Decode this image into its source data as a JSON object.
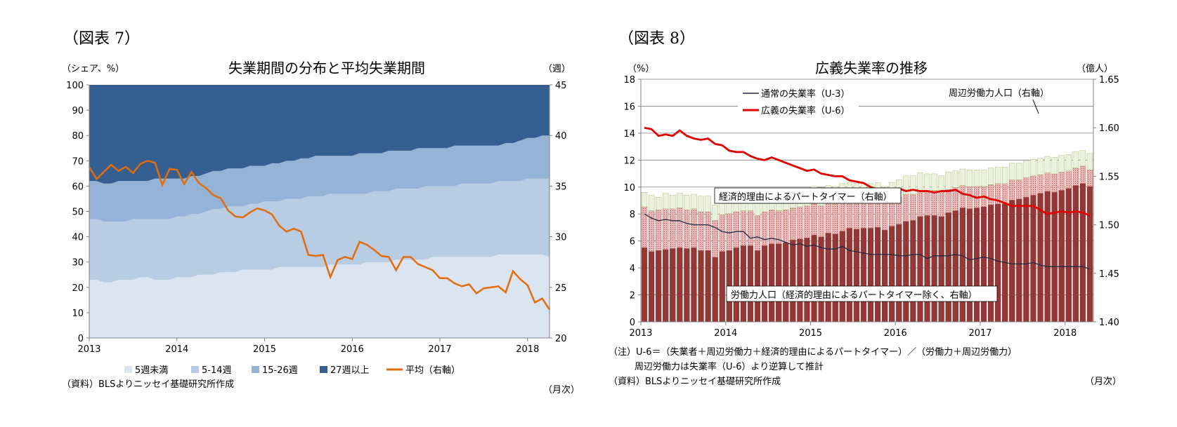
{
  "figures": [
    {
      "id": "fig7",
      "label": "（図表 7）",
      "source": "（資料）BLSよりニッセイ基礎研究所作成",
      "xunit": "（月次）"
    },
    {
      "id": "fig8",
      "label": "（図表 8）",
      "note1": "（注）U-6＝（失業者＋周辺労働力＋経済的理由によるパートタイマー）／（労働力＋周辺労働力）",
      "note2": "周辺労働力は失業率（U-6）より逆算して推計",
      "source": "（資料）BLSよりニッセイ基礎研究所作成",
      "xunit": "（月次）"
    }
  ],
  "chart_data": [
    {
      "type": "area",
      "title": "失業期間の分布と平均失業期間",
      "ylabel_left": "（シェア、%）",
      "ylabel_right": "（週）",
      "ylim": [
        0,
        100
      ],
      "ylim_right": [
        20,
        45
      ],
      "yticks_left": [
        0,
        10,
        20,
        30,
        40,
        50,
        60,
        70,
        80,
        90,
        100
      ],
      "yticks_right": [
        20,
        25,
        30,
        35,
        40,
        45
      ],
      "x_start": "2013-01",
      "x_end": "2018-04",
      "xticks": [
        "2013",
        "2014",
        "2015",
        "2016",
        "2017",
        "2018"
      ],
      "legend_position": "bottom",
      "series": [
        {
          "name": "5週未満",
          "kind": "area",
          "color": "#dbe5f1",
          "values": [
            23,
            23,
            22,
            22,
            23,
            23,
            23,
            24,
            24,
            23,
            23,
            23,
            24,
            24,
            24,
            25,
            25,
            25,
            26,
            26,
            26,
            27,
            27,
            27,
            27,
            27,
            28,
            28,
            28,
            28,
            28,
            28,
            28,
            29,
            29,
            29,
            29,
            29,
            30,
            30,
            30,
            30,
            31,
            31,
            31,
            31,
            31,
            32,
            32,
            32,
            32,
            32,
            32,
            32,
            32,
            32,
            33,
            33,
            33,
            33,
            33,
            33,
            33,
            32
          ]
        },
        {
          "name": "5-14週",
          "kind": "area",
          "color": "#b8cce4",
          "values": [
            47,
            47,
            46,
            46,
            46,
            46,
            47,
            47,
            47,
            47,
            47,
            47,
            48,
            48,
            49,
            49,
            50,
            51,
            51,
            52,
            52,
            52,
            53,
            53,
            54,
            54,
            54,
            55,
            55,
            55,
            56,
            56,
            56,
            57,
            57,
            57,
            57,
            57,
            57,
            58,
            58,
            58,
            59,
            59,
            59,
            59,
            60,
            60,
            60,
            60,
            60,
            61,
            61,
            61,
            61,
            61,
            62,
            62,
            62,
            62,
            63,
            63,
            63,
            63
          ]
        },
        {
          "name": "15-26週",
          "kind": "area",
          "color": "#95b3d7",
          "values": [
            62,
            62,
            61,
            61,
            62,
            62,
            62,
            62,
            62,
            63,
            63,
            63,
            63,
            63,
            64,
            64,
            65,
            66,
            66,
            67,
            67,
            67,
            68,
            68,
            68,
            69,
            69,
            70,
            70,
            71,
            71,
            72,
            72,
            72,
            72,
            72,
            72,
            73,
            73,
            73,
            73,
            74,
            74,
            74,
            74,
            75,
            75,
            75,
            75,
            75,
            76,
            76,
            76,
            76,
            76,
            76,
            76,
            77,
            77,
            78,
            79,
            79,
            80,
            80
          ]
        },
        {
          "name": "27週以上",
          "kind": "area",
          "color": "#365f91",
          "values": [
            100,
            100,
            100,
            100,
            100,
            100,
            100,
            100,
            100,
            100,
            100,
            100,
            100,
            100,
            100,
            100,
            100,
            100,
            100,
            100,
            100,
            100,
            100,
            100,
            100,
            100,
            100,
            100,
            100,
            100,
            100,
            100,
            100,
            100,
            100,
            100,
            100,
            100,
            100,
            100,
            100,
            100,
            100,
            100,
            100,
            100,
            100,
            100,
            100,
            100,
            100,
            100,
            100,
            100,
            100,
            100,
            100,
            100,
            100,
            100,
            100,
            100,
            100,
            100
          ]
        },
        {
          "name": "平均（右軸）",
          "kind": "line",
          "axis": "right",
          "color": "#e46c0a",
          "values": [
            36.9,
            35.7,
            36.4,
            37.1,
            36.5,
            36.9,
            36.3,
            37.2,
            37.5,
            37.3,
            35.1,
            36.7,
            36.6,
            35.2,
            36.4,
            35.3,
            34.8,
            34.1,
            33.8,
            32.6,
            32.0,
            31.9,
            32.4,
            32.8,
            32.6,
            32.2,
            31.1,
            30.5,
            30.8,
            30.5,
            28.2,
            28.1,
            28.2,
            26.0,
            27.7,
            28.0,
            27.8,
            29.5,
            29.2,
            28.7,
            28.1,
            28.0,
            26.7,
            28.0,
            28.0,
            27.3,
            27.0,
            26.7,
            25.9,
            25.9,
            25.4,
            25.1,
            25.3,
            24.4,
            24.9,
            25.0,
            25.1,
            24.5,
            26.6,
            25.8,
            25.2,
            23.5,
            23.9,
            22.8
          ]
        }
      ]
    },
    {
      "type": "bar",
      "title": "広義失業率の推移",
      "ylabel_left": "（%）",
      "ylabel_right": "（億人）",
      "ylim": [
        0,
        18
      ],
      "ylim_right": [
        1.4,
        1.65
      ],
      "yticks_left": [
        0,
        2,
        4,
        6,
        8,
        10,
        12,
        14,
        16,
        18
      ],
      "yticks_right": [
        1.4,
        1.45,
        1.5,
        1.55,
        1.6,
        1.65
      ],
      "x_start": "2013-01",
      "x_end": "2018-04",
      "xticks": [
        "2013",
        "2014",
        "2015",
        "2016",
        "2017",
        "2018"
      ],
      "legend_position": "top-left",
      "annotations": [
        {
          "text": "周辺労働力人口（右軸）"
        },
        {
          "text": "経済的理由によるパートタイマー（右軸）"
        },
        {
          "text": "労働力人口（経済的理由によるパートタイマー除く、右軸）"
        }
      ],
      "series": [
        {
          "name": "労働力人口（経済的理由によるパートタイマー除く、右軸）",
          "kind": "stacked-bar",
          "axis": "right",
          "color": "#953735",
          "values": [
            1.4765,
            1.4725,
            1.4735,
            1.4745,
            1.4755,
            1.4765,
            1.4755,
            1.4765,
            1.4735,
            1.4735,
            1.4665,
            1.4725,
            1.4735,
            1.4765,
            1.4785,
            1.4785,
            1.4735,
            1.4785,
            1.4805,
            1.4805,
            1.4815,
            1.4845,
            1.4855,
            1.4865,
            1.4895,
            1.4875,
            1.4915,
            1.4905,
            1.4935,
            1.4965,
            1.4955,
            1.4965,
            1.4965,
            1.4975,
            1.4945,
            1.4985,
            1.5005,
            1.5035,
            1.5045,
            1.5085,
            1.5095,
            1.5095,
            1.5085,
            1.5125,
            1.5145,
            1.5175,
            1.5165,
            1.5175,
            1.5185,
            1.5205,
            1.5215,
            1.5215,
            1.5255,
            1.5265,
            1.5285,
            1.5305,
            1.5325,
            1.5345,
            1.5335,
            1.5355,
            1.5375,
            1.5405,
            1.5425,
            1.5395
          ]
        },
        {
          "name": "経済的理由によるパートタイマー（右軸）",
          "kind": "stacked-bar",
          "axis": "right",
          "color": "#e6b9b8",
          "values": [
            1.5185,
            1.5145,
            1.5155,
            1.5165,
            1.5165,
            1.5175,
            1.5155,
            1.5165,
            1.5135,
            1.5135,
            1.5045,
            1.5105,
            1.5115,
            1.5135,
            1.5145,
            1.5145,
            1.5095,
            1.5135,
            1.5155,
            1.5145,
            1.5155,
            1.5175,
            1.5185,
            1.5195,
            1.5215,
            1.5195,
            1.5235,
            1.5215,
            1.5245,
            1.5265,
            1.5255,
            1.5255,
            1.5255,
            1.5255,
            1.5225,
            1.5255,
            1.5285,
            1.5315,
            1.5315,
            1.5345,
            1.5355,
            1.5355,
            1.5335,
            1.5365,
            1.5385,
            1.5405,
            1.5395,
            1.5395,
            1.5395,
            1.5415,
            1.5425,
            1.5425,
            1.5465,
            1.5465,
            1.5485,
            1.5505,
            1.5515,
            1.5535,
            1.5525,
            1.5545,
            1.5555,
            1.5585,
            1.5605,
            1.5565
          ]
        },
        {
          "name": "周辺労働力人口（右軸）",
          "kind": "stacked-bar",
          "axis": "right",
          "color": "#ebf1de",
          "values": [
            1.5335,
            1.5305,
            1.5285,
            1.5325,
            1.5305,
            1.5325,
            1.5305,
            1.5315,
            1.5295,
            1.5295,
            1.5205,
            1.5285,
            1.5275,
            1.5285,
            1.5315,
            1.5305,
            1.5255,
            1.5305,
            1.5315,
            1.5315,
            1.5325,
            1.5345,
            1.5355,
            1.5365,
            1.5395,
            1.5385,
            1.5405,
            1.5395,
            1.5425,
            1.5435,
            1.5425,
            1.5425,
            1.5425,
            1.5435,
            1.5395,
            1.5435,
            1.5465,
            1.5505,
            1.5505,
            1.5535,
            1.5525,
            1.5525,
            1.5505,
            1.5545,
            1.5555,
            1.5575,
            1.5565,
            1.5565,
            1.5565,
            1.5585,
            1.5595,
            1.5595,
            1.5635,
            1.5635,
            1.5655,
            1.5675,
            1.5685,
            1.5705,
            1.5695,
            1.5715,
            1.5725,
            1.5755,
            1.5765,
            1.5735
          ]
        },
        {
          "name": "通常の失業率（U-3）",
          "kind": "line",
          "axis": "left",
          "color": "#1f2a44",
          "values": [
            8.0,
            7.7,
            7.5,
            7.6,
            7.5,
            7.5,
            7.3,
            7.2,
            7.2,
            7.2,
            7.0,
            6.7,
            6.6,
            6.7,
            6.7,
            6.2,
            6.3,
            6.1,
            6.2,
            6.1,
            5.9,
            5.7,
            5.8,
            5.6,
            5.7,
            5.5,
            5.4,
            5.4,
            5.6,
            5.3,
            5.2,
            5.1,
            5.0,
            5.0,
            5.0,
            5.0,
            4.9,
            4.9,
            5.0,
            5.0,
            4.7,
            4.9,
            4.9,
            4.9,
            5.0,
            4.9,
            4.6,
            4.7,
            4.8,
            4.7,
            4.5,
            4.4,
            4.3,
            4.3,
            4.3,
            4.4,
            4.2,
            4.1,
            4.1,
            4.1,
            4.1,
            4.1,
            4.1,
            3.9
          ]
        },
        {
          "name": "広義の失業率（U-6）",
          "kind": "line",
          "axis": "left",
          "color": "#e00000",
          "values": [
            14.4,
            14.3,
            13.8,
            13.9,
            13.8,
            14.2,
            13.8,
            13.6,
            13.5,
            13.6,
            13.2,
            13.1,
            12.7,
            12.6,
            12.6,
            12.3,
            12.1,
            12.0,
            12.2,
            12.0,
            11.8,
            11.6,
            11.4,
            11.2,
            11.3,
            11.0,
            10.9,
            10.8,
            10.8,
            10.5,
            10.4,
            10.3,
            10.0,
            9.8,
            9.9,
            9.8,
            9.9,
            9.7,
            9.8,
            9.7,
            9.7,
            9.6,
            9.7,
            9.7,
            9.8,
            9.5,
            9.4,
            9.2,
            9.3,
            9.1,
            9.0,
            8.8,
            8.6,
            8.6,
            8.6,
            8.6,
            8.3,
            8.0,
            8.1,
            8.2,
            8.1,
            8.2,
            8.1,
            7.9
          ]
        }
      ]
    }
  ]
}
